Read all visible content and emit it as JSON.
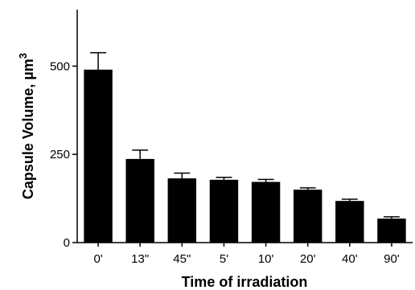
{
  "chart_data": {
    "type": "bar",
    "categories": [
      "0'",
      "13\"",
      "45\"",
      "5'",
      "10'",
      "20'",
      "40'",
      "90'"
    ],
    "values": [
      490,
      237,
      182,
      178,
      172,
      150,
      118,
      68
    ],
    "errors": [
      48,
      25,
      15,
      7,
      7,
      5,
      5,
      5
    ],
    "error_bars": "upper",
    "title": "",
    "xlabel": "Time of irradiation",
    "ylabel": "Capsule Volume, µm",
    "ylabel_superscript": "3",
    "ylim": [
      0,
      660
    ],
    "yticks": [
      0,
      250,
      500
    ],
    "grid": false,
    "bar_color": "#000000"
  }
}
